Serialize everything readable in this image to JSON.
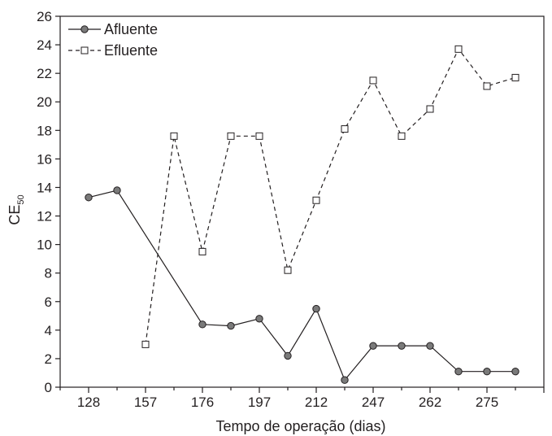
{
  "chart_data": {
    "type": "line",
    "xlabel": "Tempo de operação (dias)",
    "ylabel": "CE",
    "ylabel_sub": "50",
    "ylim": [
      0,
      26
    ],
    "yticks": [
      0,
      2,
      4,
      6,
      8,
      10,
      12,
      14,
      16,
      18,
      20,
      22,
      24,
      26
    ],
    "x_positions": 18,
    "xtick_labels": [
      {
        "pos": 1,
        "label": "128"
      },
      {
        "pos": 3,
        "label": "157"
      },
      {
        "pos": 5,
        "label": "176"
      },
      {
        "pos": 7,
        "label": "197"
      },
      {
        "pos": 9,
        "label": "212"
      },
      {
        "pos": 11,
        "label": "247"
      },
      {
        "pos": 13,
        "label": "262"
      },
      {
        "pos": 15,
        "label": "275"
      }
    ],
    "legend_position": "top-left",
    "series": [
      {
        "name": "Afluente",
        "style": "solid",
        "marker": "circle",
        "x": [
          1,
          2,
          5,
          6,
          7,
          8,
          9,
          10,
          11,
          12,
          13,
          14,
          15,
          16
        ],
        "values": [
          13.3,
          13.8,
          4.4,
          4.3,
          4.8,
          2.2,
          5.5,
          0.5,
          2.9,
          2.9,
          2.9,
          1.1,
          1.1,
          1.1
        ]
      },
      {
        "name": "Efluente",
        "style": "dashed",
        "marker": "square",
        "x": [
          3,
          4,
          5,
          6,
          7,
          8,
          9,
          10,
          11,
          12,
          13,
          14,
          15,
          16
        ],
        "values": [
          3.0,
          17.6,
          9.5,
          17.6,
          17.6,
          8.2,
          13.1,
          18.1,
          21.5,
          17.6,
          19.5,
          23.7,
          21.1,
          21.7
        ]
      }
    ],
    "colors": {
      "axis": "#231f20",
      "circle_fill": "#7a7a7a",
      "square_fill": "#ffffff"
    }
  }
}
